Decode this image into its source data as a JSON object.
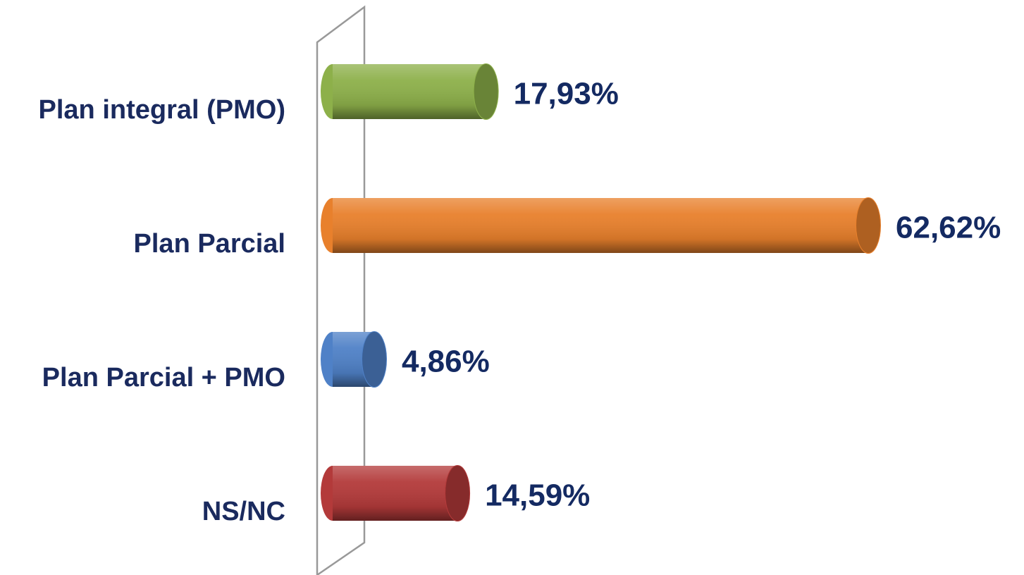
{
  "chart_data": {
    "type": "bar",
    "orientation": "horizontal",
    "categories": [
      "Plan integral (PMO)",
      "Plan Parcial",
      "Plan Parcial + PMO",
      "NS/NC"
    ],
    "series": [
      {
        "values": [
          17.93,
          62.62,
          4.86,
          14.59
        ],
        "value_labels": [
          "17,93%",
          "62,62%",
          "4,86%",
          "14,59%"
        ],
        "colors": [
          "#8db04a",
          "#e8802c",
          "#4f81c7",
          "#b33a3a"
        ]
      }
    ]
  }
}
